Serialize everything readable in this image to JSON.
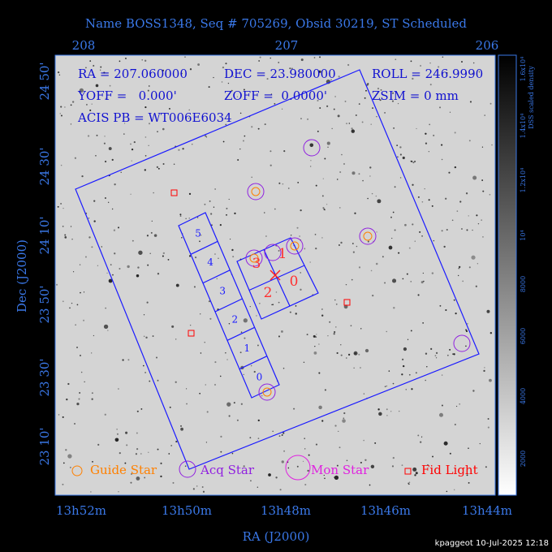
{
  "header": {
    "title": "Name BOSS1348, Seq # 705269, Obsid 30219, ST Scheduled"
  },
  "axes": {
    "top_ticks": [
      "208",
      "207",
      "206"
    ],
    "left_ticks": [
      "24 50'",
      "24 30'",
      "24 10'",
      "23 50'",
      "23 30'",
      "23 10'"
    ],
    "bottom_ticks": [
      "13h52m",
      "13h50m",
      "13h48m",
      "13h46m",
      "13h44m"
    ],
    "x_label": "RA (J2000)",
    "y_label": "Dec (J2000)"
  },
  "info": {
    "rows": [
      [
        "RA = 207.060000",
        "DEC = 23.980000",
        "ROLL = 246.9990"
      ],
      [
        "YOFF =   0.000'",
        "ZOFF =  0.0000'",
        "ZSIM = 0 mm"
      ],
      [
        "ACIS PB = WT006E6034"
      ]
    ]
  },
  "chips": {
    "strip": [
      "5",
      "4",
      "3",
      "2",
      "1",
      "0"
    ],
    "imaging": [
      "3",
      "1",
      "2",
      "0"
    ]
  },
  "legend": [
    "Guide Star",
    "Acq Star",
    "Mon Star",
    "Fid Light"
  ],
  "colorbar": {
    "title": "DSS scaled density",
    "ticks": [
      "2000",
      "4000",
      "6000",
      "8000",
      "10⁴",
      "1.2x10⁴",
      "1.4x10⁴",
      "1.6x10⁴"
    ]
  },
  "footer": "kpaggeot 10-Jul-2025 12:18"
}
